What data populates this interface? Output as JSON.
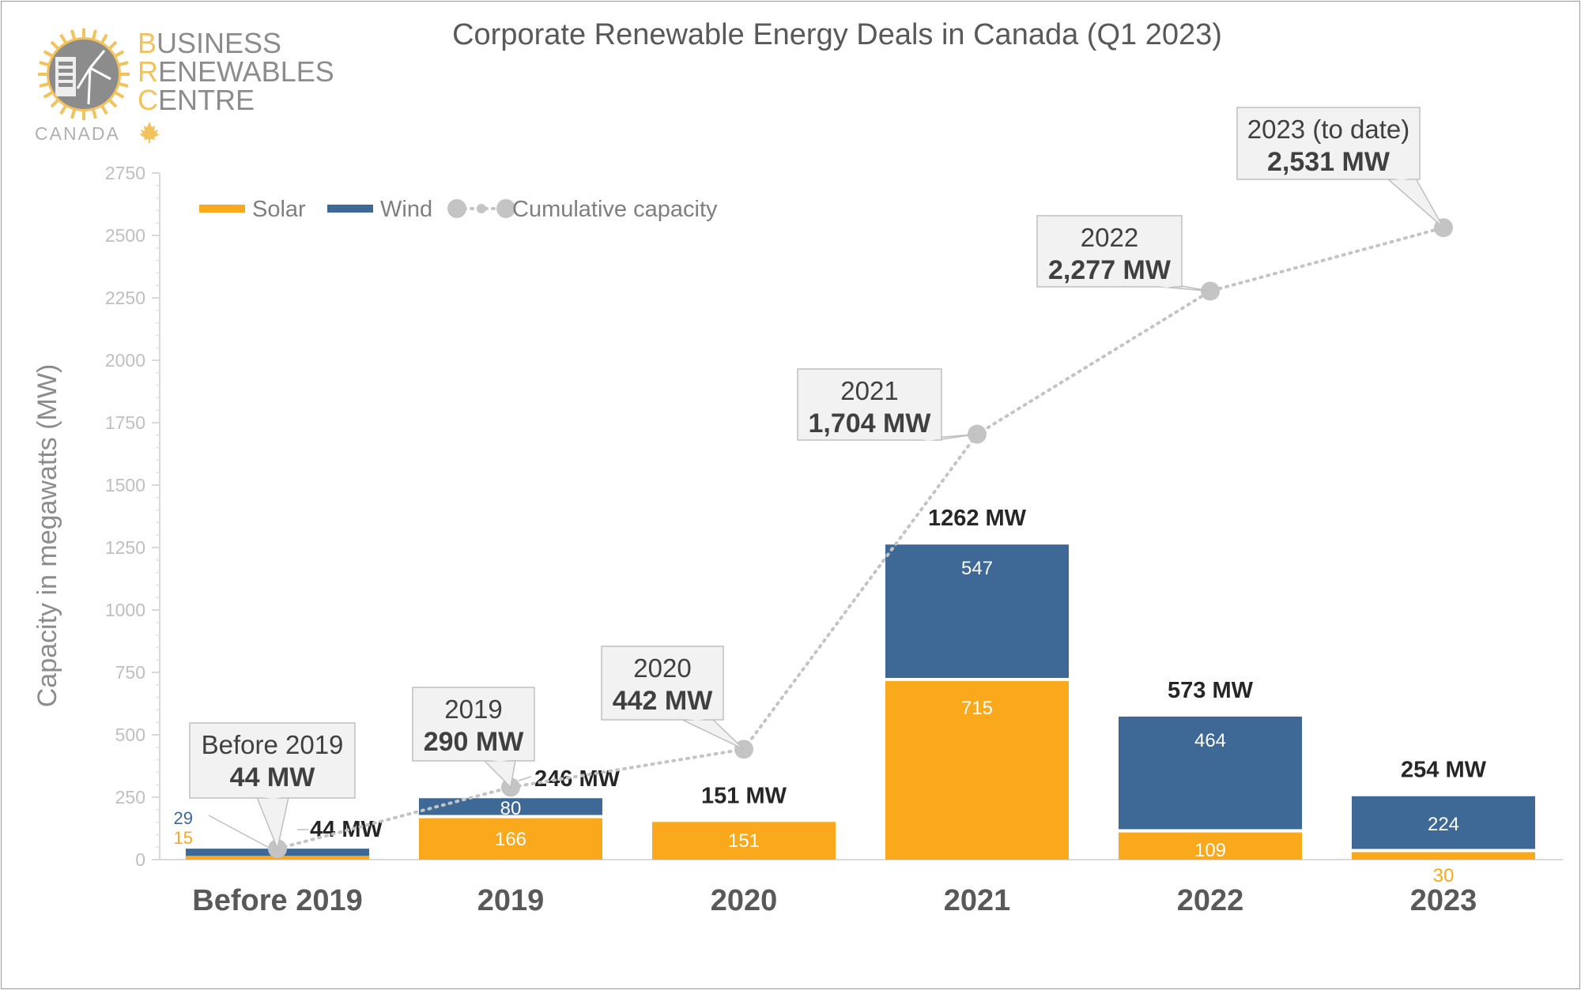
{
  "logo": {
    "line1_initial": "B",
    "line1_rest": "USINESS",
    "line2_initial": "R",
    "line2_rest": "ENEWABLES",
    "line3_initial": "C",
    "line3_rest": "ENTRE",
    "country": "CANADA"
  },
  "colors": {
    "solar": "#F9A91B",
    "wind": "#3E6895",
    "cumulative": "#C4C4C4",
    "axis_text": "#BFBFBF",
    "title": "#595959",
    "logo_gold": "#F2C25C",
    "logo_gray": "#8C8C8C"
  },
  "chart_data": {
    "type": "bar",
    "title": "Corporate Renewable Energy Deals in Canada (Q1 2023)",
    "ylabel": "Capacity in megawatts (MW)",
    "xlabel": "",
    "ylim": [
      0,
      2750
    ],
    "yticks": [
      0,
      250,
      500,
      750,
      1000,
      1250,
      1500,
      1750,
      2000,
      2250,
      2500,
      2750
    ],
    "stacked": true,
    "legend_position": "top-left",
    "categories": [
      "Before 2019",
      "2019",
      "2020",
      "2021",
      "2022",
      "2023"
    ],
    "series": [
      {
        "name": "Solar",
        "values": [
          15,
          166,
          151,
          715,
          109,
          30
        ],
        "labels": [
          "15",
          "166",
          "151",
          "715",
          "109",
          "30"
        ]
      },
      {
        "name": "Wind",
        "values": [
          29,
          80,
          0,
          547,
          464,
          224
        ],
        "labels": [
          "29",
          "80",
          "",
          "547",
          "464",
          "224"
        ]
      }
    ],
    "totals": [
      "44 MW",
      "246 MW",
      "151 MW",
      "1262 MW",
      "573 MW",
      "254 MW"
    ],
    "cumulative": {
      "name": "Cumulative capacity",
      "values": [
        44,
        290,
        442,
        1704,
        2277,
        2531
      ],
      "callout_years": [
        "Before 2019",
        "2019",
        "2020",
        "2021",
        "2022",
        "2023 (to date)"
      ],
      "callout_values": [
        "44 MW",
        "290 MW",
        "442 MW",
        "1,704 MW",
        "2,277 MW",
        "2,531 MW"
      ]
    }
  }
}
